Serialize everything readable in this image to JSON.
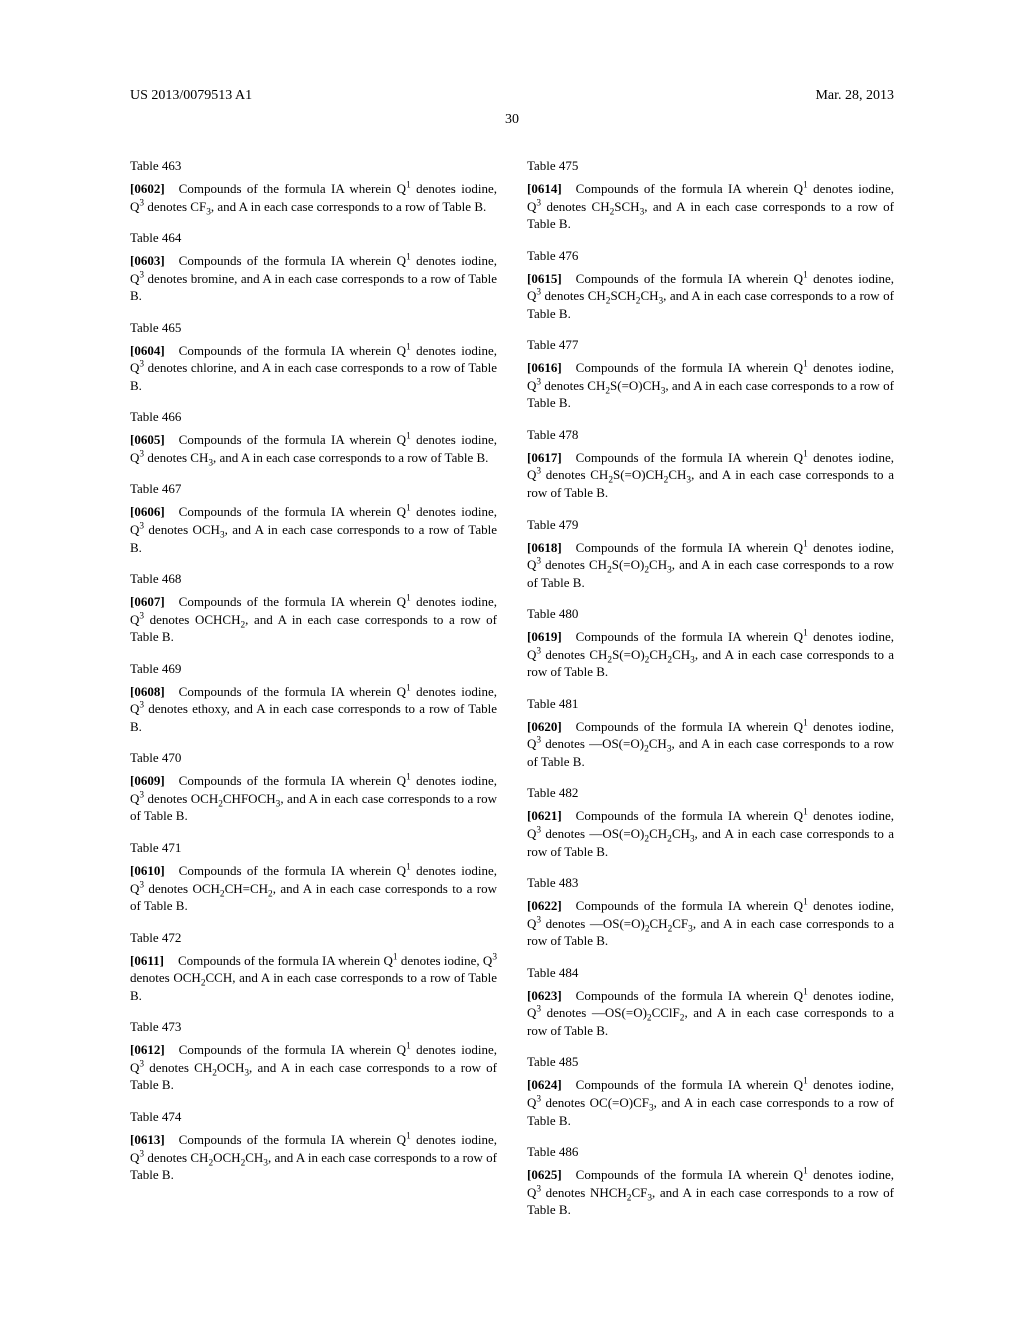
{
  "header": {
    "left": "US 2013/0079513 A1",
    "right": "Mar. 28, 2013"
  },
  "page_number": "30",
  "left_column": [
    {
      "table": "Table 463",
      "num": "[0602]",
      "body": "Compounds of the formula IA wherein Q<sup>1</sup> denotes iodine, Q<sup>3</sup> denotes CF<sub>3</sub>, and A in each case corresponds to a row of Table B."
    },
    {
      "table": "Table 464",
      "num": "[0603]",
      "body": "Compounds of the formula IA wherein Q<sup>1</sup> denotes iodine, Q<sup>3</sup> denotes bromine, and A in each case corresponds to a row of Table B."
    },
    {
      "table": "Table 465",
      "num": "[0604]",
      "body": "Compounds of the formula IA wherein Q<sup>1</sup> denotes iodine, Q<sup>3</sup> denotes chlorine, and A in each case corresponds to a row of Table B."
    },
    {
      "table": "Table 466",
      "num": "[0605]",
      "body": "Compounds of the formula IA wherein Q<sup>1</sup> denotes iodine, Q<sup>3</sup> denotes CH<sub>3</sub>, and A in each case corresponds to a row of Table B."
    },
    {
      "table": "Table 467",
      "num": "[0606]",
      "body": "Compounds of the formula IA wherein Q<sup>1</sup> denotes iodine, Q<sup>3</sup> denotes OCH<sub>3</sub>, and A in each case corresponds to a row of Table B."
    },
    {
      "table": "Table 468",
      "num": "[0607]",
      "body": "Compounds of the formula IA wherein Q<sup>1</sup> denotes iodine, Q<sup>3</sup> denotes OCHCH<sub>2</sub>, and A in each case corresponds to a row of Table B."
    },
    {
      "table": "Table 469",
      "num": "[0608]",
      "body": "Compounds of the formula IA wherein Q<sup>1</sup> denotes iodine, Q<sup>3</sup> denotes ethoxy, and A in each case corresponds to a row of Table B."
    },
    {
      "table": "Table 470",
      "num": "[0609]",
      "body": "Compounds of the formula IA wherein Q<sup>1</sup> denotes iodine, Q<sup>3</sup> denotes OCH<sub>2</sub>CHFOCH<sub>3</sub>, and A in each case corresponds to a row of Table B."
    },
    {
      "table": "Table 471",
      "num": "[0610]",
      "body": "Compounds of the formula IA wherein Q<sup>1</sup> denotes iodine, Q<sup>3</sup> denotes OCH<sub>2</sub>CH=CH<sub>2</sub>, and A in each case corresponds to a row of Table B."
    },
    {
      "table": "Table 472",
      "num": "[0611]",
      "body": "Compounds of the formula IA wherein Q<sup>1</sup> denotes iodine, Q<sup>3</sup> denotes OCH<sub>2</sub>CCH, and A in each case corresponds to a row of Table B."
    },
    {
      "table": "Table 473",
      "num": "[0612]",
      "body": "Compounds of the formula IA wherein Q<sup>1</sup> denotes iodine, Q<sup>3</sup> denotes CH<sub>2</sub>OCH<sub>3</sub>, and A in each case corresponds to a row of Table B."
    },
    {
      "table": "Table 474",
      "num": "[0613]",
      "body": "Compounds of the formula IA wherein Q<sup>1</sup> denotes iodine, Q<sup>3</sup> denotes CH<sub>2</sub>OCH<sub>2</sub>CH<sub>3</sub>, and A in each case corresponds to a row of Table B."
    }
  ],
  "right_column": [
    {
      "table": "Table 475",
      "num": "[0614]",
      "body": "Compounds of the formula IA wherein Q<sup>1</sup> denotes iodine, Q<sup>3</sup> denotes CH<sub>2</sub>SCH<sub>3</sub>, and A in each case corresponds to a row of Table B."
    },
    {
      "table": "Table 476",
      "num": "[0615]",
      "body": "Compounds of the formula IA wherein Q<sup>1</sup> denotes iodine, Q<sup>3</sup> denotes CH<sub>2</sub>SCH<sub>2</sub>CH<sub>3</sub>, and A in each case corresponds to a row of Table B."
    },
    {
      "table": "Table 477",
      "num": "[0616]",
      "body": "Compounds of the formula IA wherein Q<sup>1</sup> denotes iodine, Q<sup>3</sup> denotes CH<sub>2</sub>S(=O)CH<sub>3</sub>, and A in each case corresponds to a row of Table B."
    },
    {
      "table": "Table 478",
      "num": "[0617]",
      "body": "Compounds of the formula IA wherein Q<sup>1</sup> denotes iodine, Q<sup>3</sup> denotes CH<sub>2</sub>S(=O)CH<sub>2</sub>CH<sub>3</sub>, and A in each case corresponds to a row of Table B."
    },
    {
      "table": "Table 479",
      "num": "[0618]",
      "body": "Compounds of the formula IA wherein Q<sup>1</sup> denotes iodine, Q<sup>3</sup> denotes CH<sub>2</sub>S(=O)<sub>2</sub>CH<sub>3</sub>, and A in each case corresponds to a row of Table B."
    },
    {
      "table": "Table 480",
      "num": "[0619]",
      "body": "Compounds of the formula IA wherein Q<sup>1</sup> denotes iodine, Q<sup>3</sup> denotes CH<sub>2</sub>S(=O)<sub>2</sub>CH<sub>2</sub>CH<sub>3</sub>, and A in each case corresponds to a row of Table B."
    },
    {
      "table": "Table 481",
      "num": "[0620]",
      "body": "Compounds of the formula IA wherein Q<sup>1</sup> denotes iodine, Q<sup>3</sup> denotes —OS(=O)<sub>2</sub>CH<sub>3</sub>, and A in each case corresponds to a row of Table B."
    },
    {
      "table": "Table 482",
      "num": "[0621]",
      "body": "Compounds of the formula IA wherein Q<sup>1</sup> denotes iodine, Q<sup>3</sup> denotes —OS(=O)<sub>2</sub>CH<sub>2</sub>CH<sub>3</sub>, and A in each case corresponds to a row of Table B."
    },
    {
      "table": "Table 483",
      "num": "[0622]",
      "body": "Compounds of the formula IA wherein Q<sup>1</sup> denotes iodine, Q<sup>3</sup> denotes —OS(=O)<sub>2</sub>CH<sub>2</sub>CF<sub>3</sub>, and A in each case corresponds to a row of Table B."
    },
    {
      "table": "Table 484",
      "num": "[0623]",
      "body": "Compounds of the formula IA wherein Q<sup>1</sup> denotes iodine, Q<sup>3</sup> denotes —OS(=O)<sub>2</sub>CClF<sub>2</sub>, and A in each case corresponds to a row of Table B."
    },
    {
      "table": "Table 485",
      "num": "[0624]",
      "body": "Compounds of the formula IA wherein Q<sup>1</sup> denotes iodine, Q<sup>3</sup> denotes OC(=O)CF<sub>3</sub>, and A in each case corresponds to a row of Table B."
    },
    {
      "table": "Table 486",
      "num": "[0625]",
      "body": "Compounds of the formula IA wherein Q<sup>1</sup> denotes iodine, Q<sup>3</sup> denotes NHCH<sub>2</sub>CF<sub>3</sub>, and A in each case corresponds to a row of Table B."
    }
  ]
}
